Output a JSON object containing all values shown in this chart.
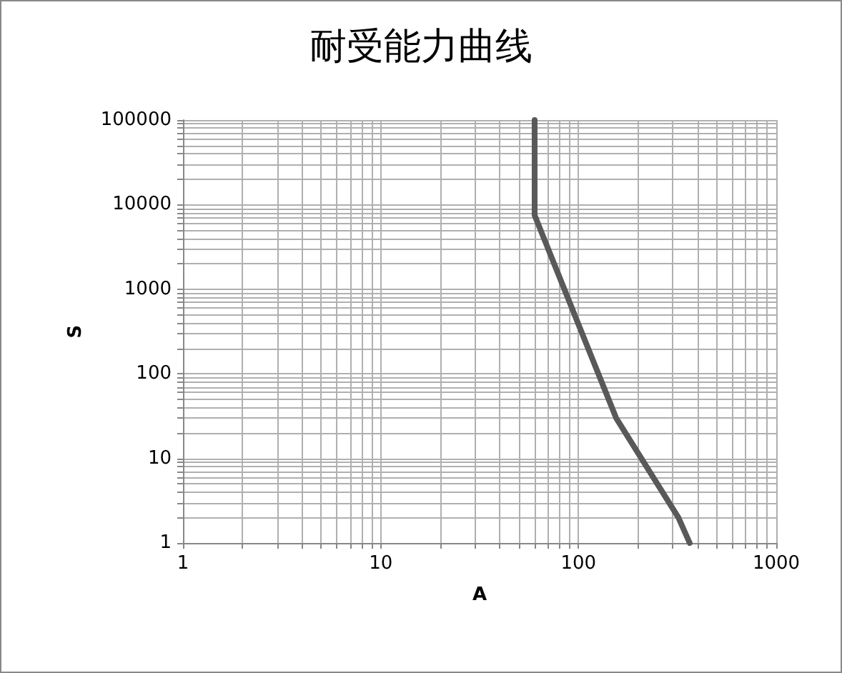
{
  "chart_data": {
    "type": "line",
    "title": "耐受能力曲线",
    "xlabel": "A",
    "ylabel": "S",
    "x": [
      60,
      60,
      155,
      320,
      365
    ],
    "series": [
      {
        "color": "#595959",
        "values": [
          100000,
          7500,
          30,
          2,
          1
        ]
      }
    ],
    "log": "xy",
    "grid": true,
    "marker": "none",
    "line_style": "solid",
    "xlim": [
      1,
      1000
    ],
    "xticks": [
      1,
      {
        "value": 2,
        "label": null
      },
      {
        "value": 3,
        "label": null
      },
      {
        "value": 4,
        "label": null
      },
      {
        "value": 5,
        "label": null
      },
      {
        "value": 6,
        "label": null
      },
      {
        "value": 7,
        "label": null
      },
      {
        "value": 8,
        "label": null
      },
      {
        "value": 9,
        "label": null
      },
      10,
      {
        "value": 20,
        "label": null
      },
      {
        "value": 30,
        "label": null
      },
      {
        "value": 40,
        "label": null
      },
      {
        "value": 50,
        "label": null
      },
      {
        "value": 60,
        "label": null
      },
      {
        "value": 70,
        "label": null
      },
      {
        "value": 80,
        "label": null
      },
      {
        "value": 90,
        "label": null
      },
      100,
      {
        "value": 200,
        "label": null
      },
      {
        "value": 300,
        "label": null
      },
      {
        "value": 400,
        "label": null
      },
      {
        "value": 500,
        "label": null
      },
      {
        "value": 600,
        "label": null
      },
      {
        "value": 700,
        "label": null
      },
      {
        "value": 800,
        "label": null
      },
      {
        "value": 900,
        "label": null
      },
      1000
    ],
    "ylim": [
      1,
      100000
    ],
    "yticks": [
      1,
      {
        "value": 2,
        "label": null
      },
      {
        "value": 3,
        "label": null
      },
      {
        "value": 4,
        "label": null
      },
      {
        "value": 5,
        "label": null
      },
      {
        "value": 6,
        "label": null
      },
      {
        "value": 7,
        "label": null
      },
      {
        "value": 8,
        "label": null
      },
      {
        "value": 9,
        "label": null
      },
      10,
      {
        "value": 20,
        "label": null
      },
      {
        "value": 30,
        "label": null
      },
      {
        "value": 40,
        "label": null
      },
      {
        "value": 50,
        "label": null
      },
      {
        "value": 60,
        "label": null
      },
      {
        "value": 70,
        "label": null
      },
      {
        "value": 80,
        "label": null
      },
      {
        "value": 90,
        "label": null
      },
      100,
      {
        "value": 200,
        "label": null
      },
      {
        "value": 300,
        "label": null
      },
      {
        "value": 400,
        "label": null
      },
      {
        "value": 500,
        "label": null
      },
      {
        "value": 600,
        "label": null
      },
      {
        "value": 700,
        "label": null
      },
      {
        "value": 800,
        "label": null
      },
      {
        "value": 900,
        "label": null
      },
      1000,
      {
        "value": 2000,
        "label": null
      },
      {
        "value": 3000,
        "label": null
      },
      {
        "value": 4000,
        "label": null
      },
      {
        "value": 5000,
        "label": null
      },
      {
        "value": 6000,
        "label": null
      },
      {
        "value": 7000,
        "label": null
      },
      {
        "value": 8000,
        "label": null
      },
      {
        "value": 9000,
        "label": null
      },
      10000,
      {
        "value": 20000,
        "label": null
      },
      {
        "value": 30000,
        "label": null
      },
      {
        "value": 40000,
        "label": null
      },
      {
        "value": 50000,
        "label": null
      },
      {
        "value": 60000,
        "label": null
      },
      {
        "value": 70000,
        "label": null
      },
      {
        "value": 80000,
        "label": null
      },
      {
        "value": 90000,
        "label": null
      },
      100000
    ]
  }
}
